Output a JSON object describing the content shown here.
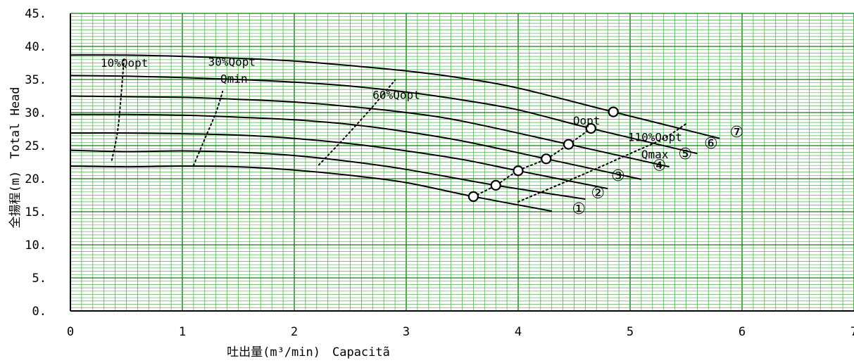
{
  "chart_data": {
    "type": "line",
    "xlabel": "吐出量(m³/min)　Capacitã",
    "ylabel": "全揚程(m)　Total Head",
    "xlim": [
      0,
      7
    ],
    "ylim": [
      0,
      45
    ],
    "x_ticks": [
      "0",
      "1",
      "2",
      "3",
      "4",
      "5",
      "6",
      "7"
    ],
    "y_ticks": [
      "0.",
      "5.",
      "10.",
      "15.",
      "20.",
      "25.",
      "30.",
      "35.",
      "40.",
      "45."
    ],
    "grid": {
      "major_x": 1,
      "minor_x": 0.1,
      "major_y": 5,
      "minor_y": 0.5
    },
    "colors": {
      "grid_major": "#1a7a1a",
      "grid_minor": "#56b056",
      "curve": "#000000"
    },
    "series": [
      {
        "label": "①",
        "points": [
          [
            0,
            21.9
          ],
          [
            0.5,
            21.8
          ],
          [
            1,
            21.9
          ],
          [
            1.5,
            21.8
          ],
          [
            2,
            21.3
          ],
          [
            2.5,
            20.5
          ],
          [
            3,
            19.4
          ],
          [
            3.6,
            17.3
          ],
          [
            4.3,
            15.1
          ]
        ],
        "duty_point": [
          3.6,
          17.3
        ]
      },
      {
        "label": "②",
        "points": [
          [
            0,
            24.3
          ],
          [
            0.5,
            24.1
          ],
          [
            1,
            24.2
          ],
          [
            1.5,
            24.0
          ],
          [
            2,
            23.5
          ],
          [
            2.5,
            22.6
          ],
          [
            3,
            21.4
          ],
          [
            3.8,
            19.0
          ],
          [
            4.6,
            16.9
          ]
        ],
        "duty_point": [
          3.8,
          19.0
        ]
      },
      {
        "label": "③",
        "points": [
          [
            0,
            26.9
          ],
          [
            0.5,
            26.9
          ],
          [
            1,
            26.8
          ],
          [
            1.5,
            26.6
          ],
          [
            2,
            26.1
          ],
          [
            2.5,
            25.3
          ],
          [
            3,
            24.2
          ],
          [
            3.5,
            22.9
          ],
          [
            4.0,
            21.2
          ],
          [
            4.8,
            18.5
          ]
        ],
        "duty_point": [
          4.0,
          21.2
        ]
      },
      {
        "label": "④",
        "points": [
          [
            0,
            29.7
          ],
          [
            0.5,
            29.7
          ],
          [
            1,
            29.6
          ],
          [
            1.5,
            29.3
          ],
          [
            2,
            28.9
          ],
          [
            2.5,
            28.2
          ],
          [
            3,
            27.1
          ],
          [
            3.5,
            25.7
          ],
          [
            4.25,
            23.0
          ],
          [
            5.1,
            19.9
          ]
        ],
        "duty_point": [
          4.25,
          23.0
        ]
      },
      {
        "label": "⑤",
        "points": [
          [
            0,
            32.5
          ],
          [
            0.5,
            32.4
          ],
          [
            1,
            32.3
          ],
          [
            1.5,
            32.0
          ],
          [
            2,
            31.6
          ],
          [
            2.5,
            30.9
          ],
          [
            3,
            30.0
          ],
          [
            3.5,
            28.7
          ],
          [
            4.45,
            25.2
          ],
          [
            5.35,
            21.8
          ]
        ],
        "duty_point": [
          4.45,
          25.2
        ]
      },
      {
        "label": "⑥",
        "points": [
          [
            0,
            35.6
          ],
          [
            0.5,
            35.5
          ],
          [
            1,
            35.3
          ],
          [
            1.5,
            35.0
          ],
          [
            2,
            34.6
          ],
          [
            2.5,
            34.0
          ],
          [
            3,
            33.1
          ],
          [
            3.5,
            31.9
          ],
          [
            4.0,
            30.4
          ],
          [
            4.65,
            27.6
          ],
          [
            5.6,
            23.8
          ]
        ],
        "duty_point": [
          4.65,
          27.6
        ]
      },
      {
        "label": "⑦",
        "points": [
          [
            0,
            38.7
          ],
          [
            0.5,
            38.7
          ],
          [
            1,
            38.5
          ],
          [
            1.5,
            38.2
          ],
          [
            2,
            37.8
          ],
          [
            2.5,
            37.1
          ],
          [
            3,
            36.3
          ],
          [
            3.5,
            35.2
          ],
          [
            4.0,
            33.7
          ],
          [
            4.85,
            30.1
          ],
          [
            5.8,
            26.1
          ]
        ],
        "duty_point": [
          4.85,
          30.1
        ]
      }
    ],
    "reference_lines": [
      {
        "name": "10%Qopt",
        "points": [
          [
            0.37,
            22.8
          ],
          [
            0.42,
            27.0
          ],
          [
            0.45,
            32.0
          ],
          [
            0.48,
            38.3
          ]
        ]
      },
      {
        "name": "30%Qopt-Qmin",
        "points": [
          [
            1.1,
            22.0
          ],
          [
            1.2,
            26.0
          ],
          [
            1.3,
            30.0
          ],
          [
            1.36,
            33.2
          ]
        ]
      },
      {
        "name": "60%Qopt",
        "points": [
          [
            2.22,
            22.1
          ],
          [
            2.45,
            26.2
          ],
          [
            2.68,
            30.5
          ],
          [
            2.9,
            34.9
          ]
        ]
      },
      {
        "name": "Qopt",
        "points": [
          [
            3.6,
            17.3
          ],
          [
            3.8,
            19.0
          ],
          [
            4.0,
            21.2
          ],
          [
            4.25,
            23.0
          ],
          [
            4.45,
            25.2
          ],
          [
            4.65,
            27.6
          ]
        ]
      },
      {
        "name": "110%Qopt-Qmax",
        "points": [
          [
            4.0,
            16.5
          ],
          [
            4.6,
            20.8
          ],
          [
            5.0,
            23.8
          ],
          [
            5.3,
            26.1
          ],
          [
            5.5,
            28.3
          ]
        ]
      }
    ],
    "annotations": [
      {
        "text": "10%Qopt",
        "x": 0.27,
        "y": 36.9,
        "anchor": "start"
      },
      {
        "text": "30%Qopt",
        "x": 1.23,
        "y": 37.1,
        "anchor": "start"
      },
      {
        "text": "Qmin",
        "x": 1.34,
        "y": 34.5,
        "anchor": "start"
      },
      {
        "text": "60%Qopt",
        "x": 2.7,
        "y": 32.1,
        "anchor": "start"
      },
      {
        "text": "Qopt",
        "x": 4.49,
        "y": 28.2,
        "anchor": "start"
      },
      {
        "text": "110%Qopt",
        "x": 4.98,
        "y": 25.7,
        "anchor": "start"
      },
      {
        "text": "Qmax",
        "x": 5.1,
        "y": 23.1,
        "anchor": "start"
      },
      {
        "text": "①",
        "x": 4.48,
        "y": 14.7,
        "anchor": "start"
      },
      {
        "text": "②",
        "x": 4.65,
        "y": 17.1,
        "anchor": "start"
      },
      {
        "text": "③",
        "x": 4.83,
        "y": 19.7,
        "anchor": "start"
      },
      {
        "text": "④",
        "x": 5.2,
        "y": 21.2,
        "anchor": "start"
      },
      {
        "text": "⑤",
        "x": 5.43,
        "y": 23.0,
        "anchor": "start"
      },
      {
        "text": "⑥",
        "x": 5.66,
        "y": 24.6,
        "anchor": "start"
      },
      {
        "text": "⑦",
        "x": 5.89,
        "y": 26.3,
        "anchor": "start"
      }
    ]
  }
}
